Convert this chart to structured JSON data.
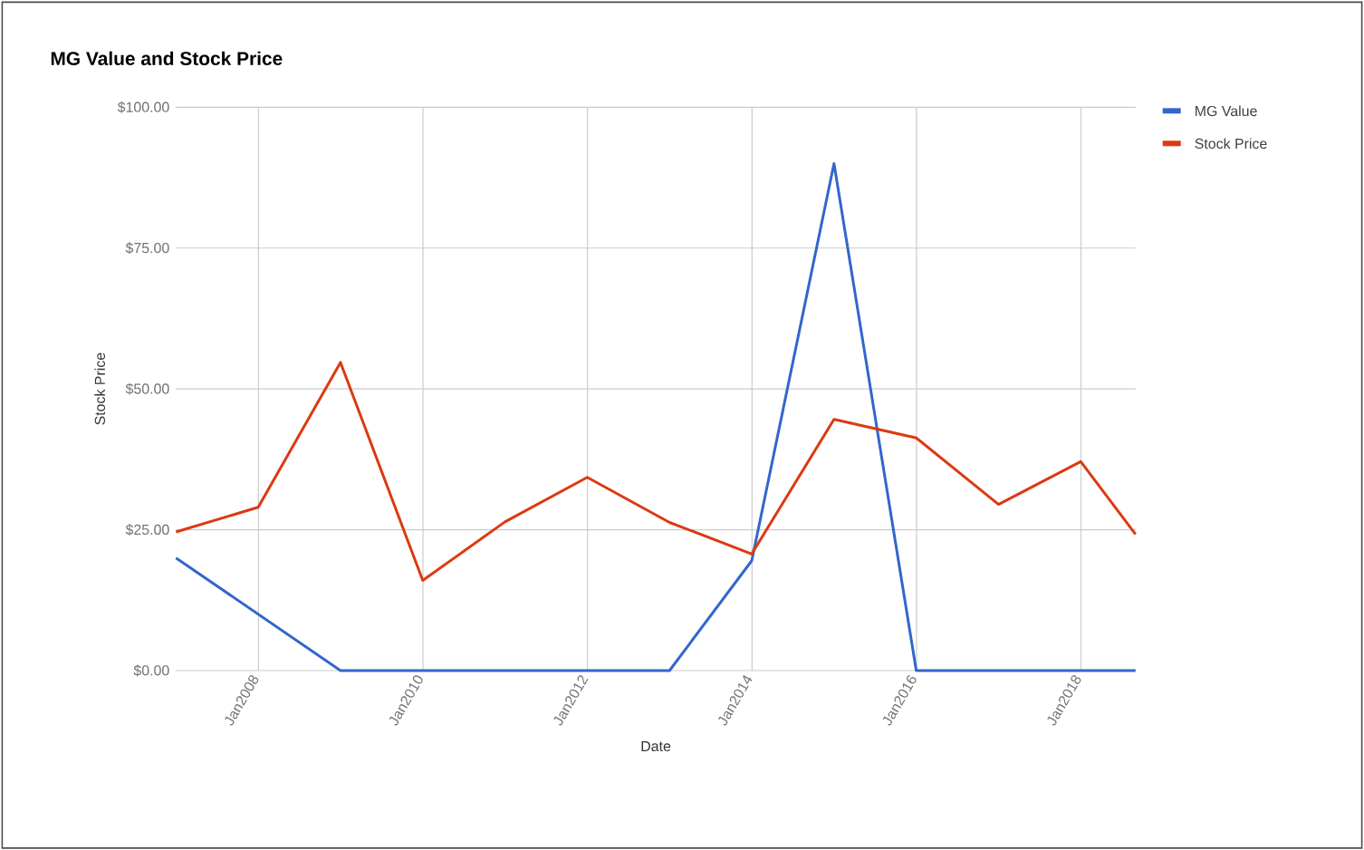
{
  "chart_data": {
    "type": "line",
    "title": "MG Value and Stock Price",
    "xlabel": "Date",
    "ylabel": "Stock Price",
    "x": [
      "2006-12-31",
      "2007-12-31",
      "2008-12-31",
      "2009-12-31",
      "2010-12-31",
      "2011-12-31",
      "2012-12-31",
      "2013-12-31",
      "2014-12-31",
      "2015-12-31",
      "2016-12-31",
      "2017-12-31",
      "2018-08-31"
    ],
    "series": [
      {
        "name": "MG Value",
        "color": "#3366cc",
        "values": [
          20,
          10,
          0,
          0,
          0,
          0,
          0,
          19.5,
          90,
          0,
          0,
          0,
          0
        ]
      },
      {
        "name": "Stock Price",
        "color": "#dc3912",
        "values": [
          24.6,
          29,
          54.7,
          16,
          26.4,
          34.3,
          26.3,
          20.7,
          44.6,
          41.3,
          29.5,
          37.1,
          24.2
        ]
      }
    ],
    "xlim": [
      "2006-12-31",
      "2018-08-31"
    ],
    "xticks": [
      {
        "value": "2008-01-01",
        "label": "Jan2008"
      },
      {
        "value": "2010-01-01",
        "label": "Jan2010"
      },
      {
        "value": "2012-01-01",
        "label": "Jan2012"
      },
      {
        "value": "2014-01-01",
        "label": "Jan2014"
      },
      {
        "value": "2016-01-01",
        "label": "Jan2016"
      },
      {
        "value": "2018-01-01",
        "label": "Jan2018"
      }
    ],
    "ylim": [
      0,
      100
    ],
    "yticks": [
      {
        "value": 0,
        "label": "$0.00"
      },
      {
        "value": 25,
        "label": "$25.00"
      },
      {
        "value": 50,
        "label": "$50.00"
      },
      {
        "value": 75,
        "label": "$75.00"
      },
      {
        "value": 100,
        "label": "$100.00"
      }
    ],
    "grid": true,
    "legend": "top right",
    "marker": "none",
    "line_style": "solid"
  }
}
